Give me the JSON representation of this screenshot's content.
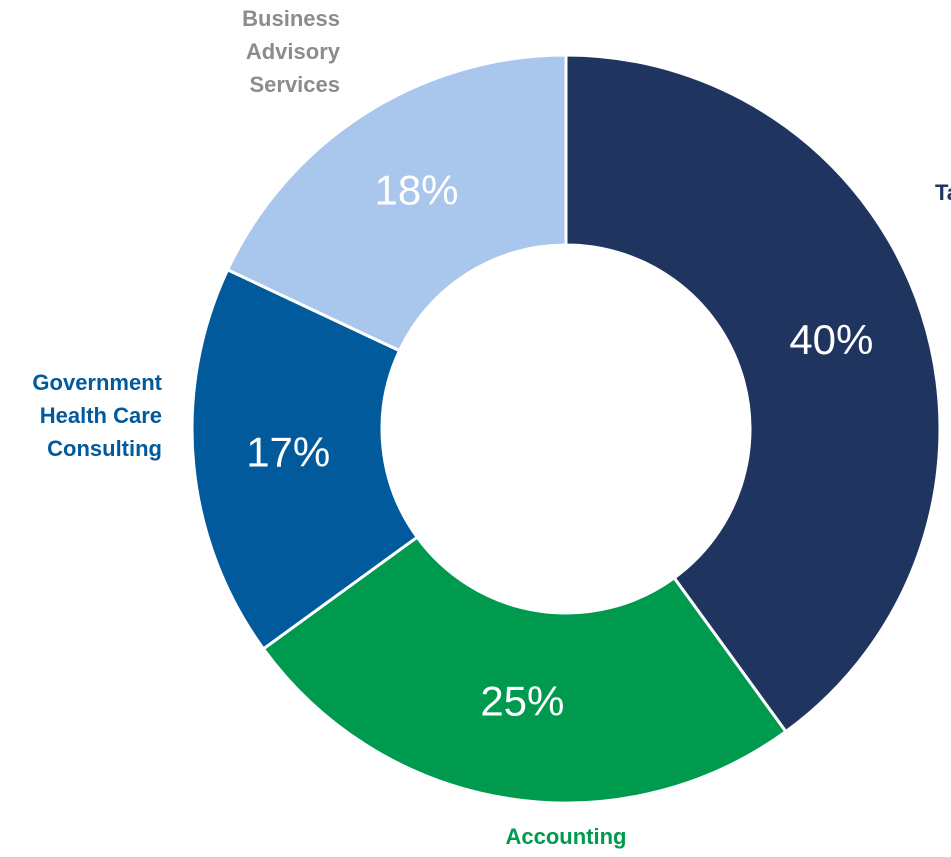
{
  "chart_data": {
    "type": "donut",
    "categories": [
      "Tax",
      "Accounting",
      "Government Health Care Consulting",
      "Business Advisory Services"
    ],
    "values": [
      40,
      25,
      17,
      18
    ],
    "value_labels": [
      "40%",
      "25%",
      "17%",
      "18%"
    ],
    "colors": [
      "#1f3560",
      "#009a4e",
      "#005a9c",
      "#a9c6ec"
    ],
    "label_colors": [
      "#1f3560",
      "#009a4e",
      "#005a9c",
      "#8c8c8c"
    ]
  }
}
